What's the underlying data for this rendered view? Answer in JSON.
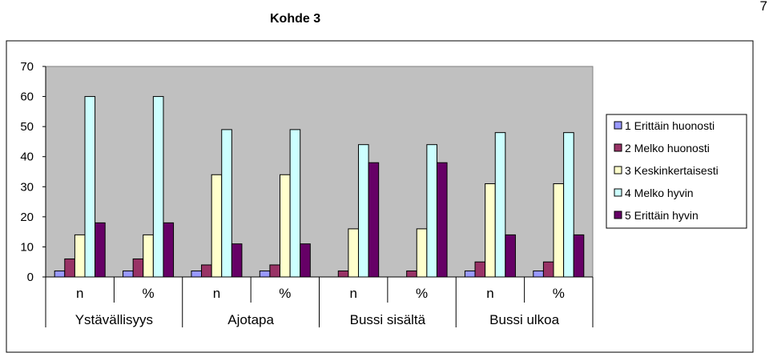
{
  "page_number": "7",
  "chart_data": {
    "type": "bar",
    "title": "Kohde 3",
    "xlabel": "",
    "ylabel": "",
    "ylim": [
      0,
      70
    ],
    "yticks": [
      0,
      10,
      20,
      30,
      40,
      50,
      60,
      70
    ],
    "grid": false,
    "legend_position": "right",
    "groups": [
      "Ystävällisyys",
      "Ajotapa",
      "Bussi sisältä",
      "Bussi ulkoa"
    ],
    "categories": [
      "n",
      "%",
      "n",
      "%",
      "n",
      "%",
      "n",
      "%"
    ],
    "series": [
      {
        "name": "1 Erittäin huonosti",
        "color": "#9999ff",
        "values": [
          2,
          2,
          2,
          2,
          0,
          0,
          2,
          2
        ]
      },
      {
        "name": "2 Melko huonosti",
        "color": "#993366",
        "values": [
          6,
          6,
          4,
          4,
          2,
          2,
          5,
          5
        ]
      },
      {
        "name": "3 Keskinkertaisesti",
        "color": "#ffffcc",
        "values": [
          14,
          14,
          34,
          34,
          16,
          16,
          31,
          31
        ]
      },
      {
        "name": "4 Melko hyvin",
        "color": "#ccffff",
        "values": [
          60,
          60,
          49,
          49,
          44,
          44,
          48,
          48
        ]
      },
      {
        "name": "5 Erittäin hyvin",
        "color": "#660066",
        "values": [
          18,
          18,
          11,
          11,
          38,
          38,
          14,
          14
        ]
      }
    ],
    "plot_background": "#c0c0c0"
  }
}
